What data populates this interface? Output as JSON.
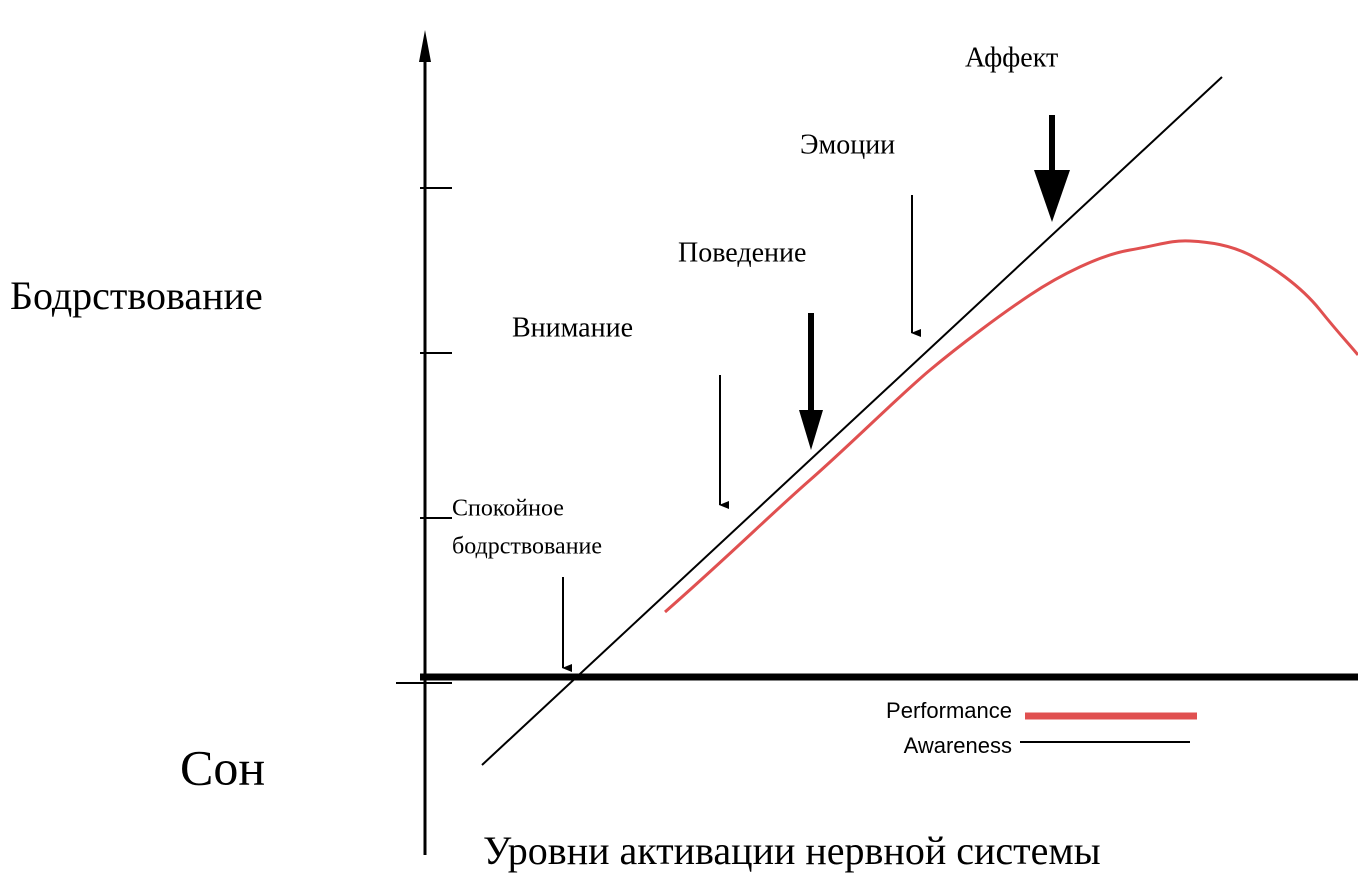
{
  "y_labels": {
    "top": "Бодрствование",
    "bottom": "Сон"
  },
  "x_label": "Уровни активации нервной системы",
  "levels": [
    "Аффект",
    "Эмоции",
    "Поведение",
    "Внимание",
    [
      "Спокойное",
      "бодрствование"
    ]
  ],
  "legend": [
    "Performance",
    "Awareness"
  ]
}
